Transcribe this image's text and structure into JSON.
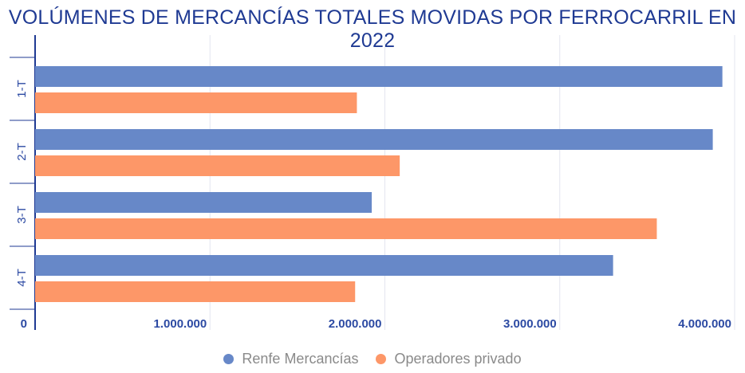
{
  "chart_data": {
    "type": "bar",
    "orientation": "horizontal",
    "title": "VOLÚMENES DE MERCANCÍAS TOTALES MOVIDAS POR FERROCARRIL EN 2022",
    "categories": [
      "1-T",
      "2-T",
      "3-T",
      "4-T"
    ],
    "series": [
      {
        "name": "Renfe Mercancías",
        "color": "#6788c8",
        "values": [
          3930000,
          3875000,
          1925000,
          3305000
        ]
      },
      {
        "name": "Operadores privado",
        "color": "#fd9768",
        "values": [
          1840000,
          2085000,
          3555000,
          1830000
        ]
      }
    ],
    "xlim": [
      0,
      4000000
    ],
    "xticks": [
      0,
      1000000,
      2000000,
      3000000,
      4000000
    ],
    "xtick_labels": [
      "0",
      "1.000.000",
      "2.000.000",
      "3.000.000",
      "4.000.000"
    ],
    "xlabel": "",
    "ylabel": "",
    "grid": true,
    "legend_position": "bottom"
  }
}
